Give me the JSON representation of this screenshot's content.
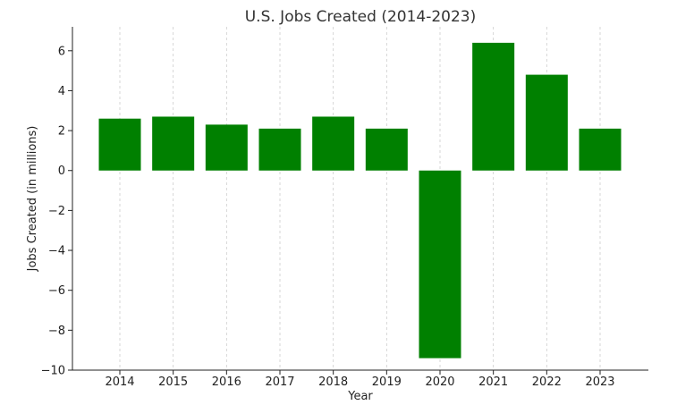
{
  "chart_data": {
    "type": "bar",
    "title": "U.S. Jobs Created (2014-2023)",
    "xlabel": "Year",
    "ylabel": "Jobs Created (in millions)",
    "categories": [
      "2014",
      "2015",
      "2016",
      "2017",
      "2018",
      "2019",
      "2020",
      "2021",
      "2022",
      "2023"
    ],
    "values": [
      2.6,
      2.7,
      2.3,
      2.1,
      2.7,
      2.1,
      -9.4,
      6.4,
      4.8,
      2.1
    ],
    "ylim": [
      -10,
      7.2
    ],
    "yticks": [
      -10,
      -8,
      -6,
      -4,
      -2,
      0,
      2,
      4,
      6
    ],
    "ytick_labels": [
      "−10",
      "−8",
      "−6",
      "−4",
      "−2",
      "0",
      "2",
      "4",
      "6"
    ],
    "bar_color": "#008000",
    "grid": {
      "x": true,
      "y": false,
      "color": "#cccccc",
      "style": "dashed"
    }
  }
}
